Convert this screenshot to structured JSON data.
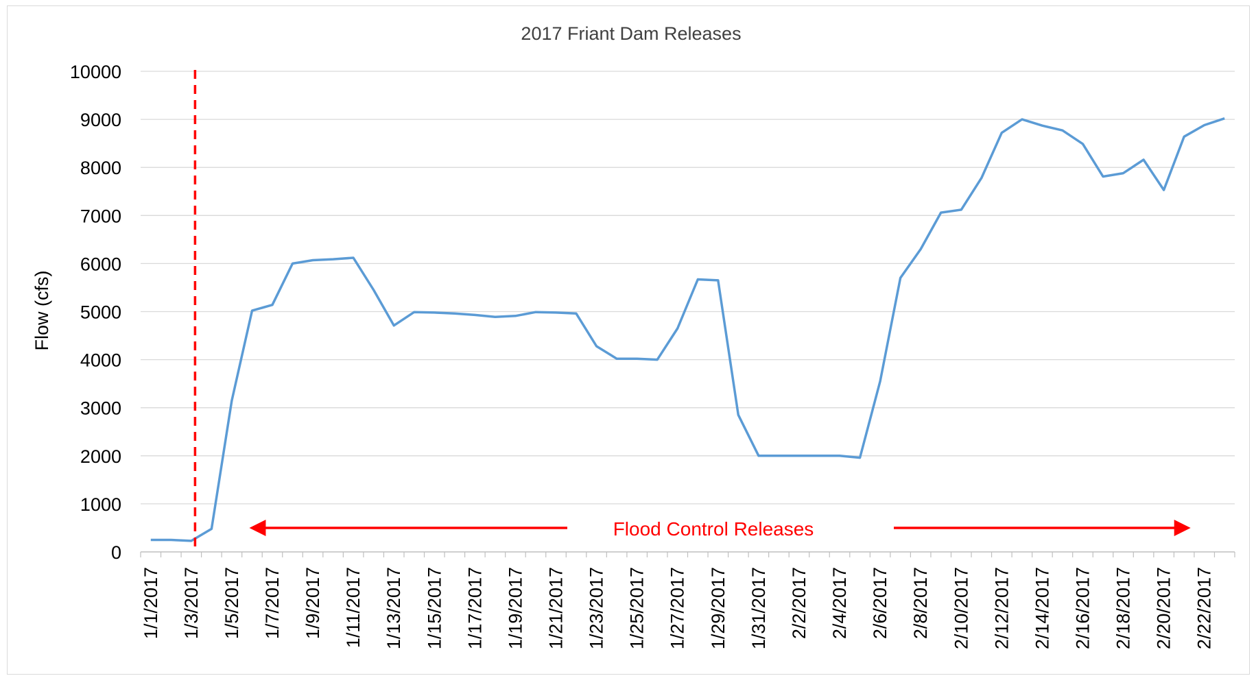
{
  "chart_data": {
    "type": "line",
    "title": "2017 Friant Dam Releases",
    "xlabel": "",
    "ylabel": "Flow (cfs)",
    "ylim": [
      0,
      10000
    ],
    "yticks": [
      0,
      1000,
      2000,
      3000,
      4000,
      5000,
      6000,
      7000,
      8000,
      9000,
      10000
    ],
    "grid": "horizontal",
    "legend": "none",
    "x_tick_labels": [
      "1/1/2017",
      "1/3/2017",
      "1/5/2017",
      "1/7/2017",
      "1/9/2017",
      "1/11/2017",
      "1/13/2017",
      "1/15/2017",
      "1/17/2017",
      "1/19/2017",
      "1/21/2017",
      "1/23/2017",
      "1/25/2017",
      "1/27/2017",
      "1/29/2017",
      "1/31/2017",
      "2/2/2017",
      "2/4/2017",
      "2/6/2017",
      "2/8/2017",
      "2/10/2017",
      "2/12/2017",
      "2/14/2017",
      "2/16/2017",
      "2/18/2017",
      "2/20/2017",
      "2/22/2017"
    ],
    "series": [
      {
        "color": "#5b9bd5",
        "x": [
          "1/1/2017",
          "1/2/2017",
          "1/3/2017",
          "1/4/2017",
          "1/5/2017",
          "1/6/2017",
          "1/7/2017",
          "1/8/2017",
          "1/9/2017",
          "1/10/2017",
          "1/11/2017",
          "1/12/2017",
          "1/13/2017",
          "1/14/2017",
          "1/15/2017",
          "1/16/2017",
          "1/17/2017",
          "1/18/2017",
          "1/19/2017",
          "1/20/2017",
          "1/21/2017",
          "1/22/2017",
          "1/23/2017",
          "1/24/2017",
          "1/25/2017",
          "1/26/2017",
          "1/27/2017",
          "1/28/2017",
          "1/29/2017",
          "1/30/2017",
          "1/31/2017",
          "2/1/2017",
          "2/2/2017",
          "2/3/2017",
          "2/4/2017",
          "2/5/2017",
          "2/6/2017",
          "2/7/2017",
          "2/8/2017",
          "2/9/2017",
          "2/10/2017",
          "2/11/2017",
          "2/12/2017",
          "2/13/2017",
          "2/14/2017",
          "2/15/2017",
          "2/16/2017",
          "2/17/2017",
          "2/18/2017",
          "2/19/2017",
          "2/20/2017",
          "2/21/2017",
          "2/22/2017",
          "2/23/2017"
        ],
        "values": [
          250,
          250,
          230,
          480,
          3150,
          5020,
          5140,
          6000,
          6070,
          6090,
          6120,
          5450,
          4710,
          4990,
          4980,
          4960,
          4930,
          4890,
          4910,
          4990,
          4980,
          4960,
          4280,
          4020,
          4020,
          4000,
          4650,
          5670,
          5650,
          2850,
          2000,
          2000,
          2000,
          2000,
          2000,
          1960,
          3550,
          5700,
          6300,
          7060,
          7120,
          7780,
          8720,
          9000,
          8870,
          8770,
          8490,
          7810,
          7880,
          8160,
          7530,
          8640,
          8880,
          9020
        ]
      }
    ],
    "annotations": {
      "event_line_date": "1/4/2017",
      "event_line_color": "#ff0000",
      "arrow_label": "Flood Control Releases",
      "arrow_color": "#ff0000",
      "arrow_start_date": "1/6/2017",
      "arrow_end_date": "2/22/2017"
    }
  }
}
